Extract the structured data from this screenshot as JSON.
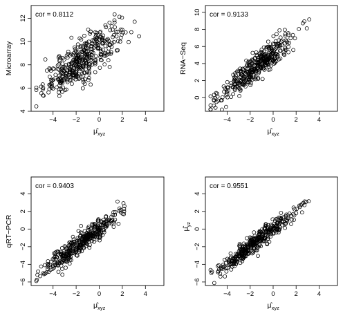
{
  "chart_data": [
    {
      "type": "scatter",
      "title": "",
      "xlabel": "μ̂xyz",
      "xlabel_base": "μ̂",
      "xlabel_sub": "xyz",
      "ylabel": "Microarray",
      "annotation": "cor =  0.8112",
      "cor": 0.8112,
      "xlim": [
        -5.9,
        5.6
      ],
      "ylim": [
        4.0,
        13.1
      ],
      "x_ticks": [
        -4,
        -2,
        0,
        2,
        4
      ],
      "x_tick_labels": [
        "−4",
        "−2",
        "0",
        "2",
        "4"
      ],
      "y_ticks": [
        4,
        6,
        8,
        10,
        12
      ],
      "y_tick_labels": [
        "4",
        "6",
        "8",
        "10",
        "12"
      ],
      "n_points": 400,
      "trend": {
        "x_mean": -1.5,
        "x_sd": 1.65,
        "slope": 0.73,
        "y_at_x0": 9.5
      }
    },
    {
      "type": "scatter",
      "title": "",
      "xlabel": "μ̂xyz",
      "xlabel_base": "μ̂",
      "xlabel_sub": "xyz",
      "ylabel": "RNA−Seq",
      "annotation": "cor =  0.9133",
      "cor": 0.9133,
      "xlim": [
        -5.9,
        5.6
      ],
      "ylim": [
        -1.6,
        10.8
      ],
      "x_ticks": [
        -4,
        -2,
        0,
        2,
        4
      ],
      "x_tick_labels": [
        "−4",
        "−2",
        "0",
        "2",
        "4"
      ],
      "y_ticks": [
        0,
        2,
        4,
        6,
        8,
        10
      ],
      "y_tick_labels": [
        "0",
        "2",
        "4",
        "6",
        "8",
        "10"
      ],
      "n_points": 400,
      "trend": {
        "x_mean": -1.5,
        "x_sd": 1.65,
        "slope": 1.06,
        "y_at_x0": 5.2
      }
    },
    {
      "type": "scatter",
      "title": "",
      "xlabel": "μ̂xyz",
      "xlabel_base": "μ̂",
      "xlabel_sub": "xyz",
      "ylabel": "qRT−PCR",
      "annotation": "cor =  0.9403",
      "cor": 0.9403,
      "xlim": [
        -5.9,
        5.6
      ],
      "ylim": [
        -6.4,
        5.9
      ],
      "x_ticks": [
        -4,
        -2,
        0,
        2,
        4
      ],
      "x_tick_labels": [
        "−4",
        "−2",
        "0",
        "2",
        "4"
      ],
      "y_ticks": [
        -6,
        -4,
        -2,
        0,
        2,
        4
      ],
      "y_tick_labels": [
        "−6",
        "−4",
        "−2",
        "0",
        "2",
        "4"
      ],
      "n_points": 400,
      "trend": {
        "x_mean": -1.5,
        "x_sd": 1.65,
        "slope": 1.0,
        "y_at_x0": 0.0
      }
    },
    {
      "type": "scatter",
      "title": "",
      "xlabel": "μ̂xyz",
      "xlabel_base": "μ̂",
      "xlabel_sub": "xyz",
      "ylabel": "μ̂yz",
      "ylabel_base": "μ̂",
      "ylabel_sub": "yz",
      "annotation": "cor =  0.9551",
      "cor": 0.9551,
      "xlim": [
        -5.9,
        5.6
      ],
      "ylim": [
        -6.4,
        5.9
      ],
      "x_ticks": [
        -4,
        -2,
        0,
        2,
        4
      ],
      "x_tick_labels": [
        "−4",
        "−2",
        "0",
        "2",
        "4"
      ],
      "y_ticks": [
        -6,
        -4,
        -2,
        0,
        2,
        4
      ],
      "y_tick_labels": [
        "−6",
        "−4",
        "−2",
        "0",
        "2",
        "4"
      ],
      "n_points": 400,
      "trend": {
        "x_mean": -1.5,
        "x_sd": 1.65,
        "slope": 1.0,
        "y_at_x0": 0.0
      }
    }
  ]
}
